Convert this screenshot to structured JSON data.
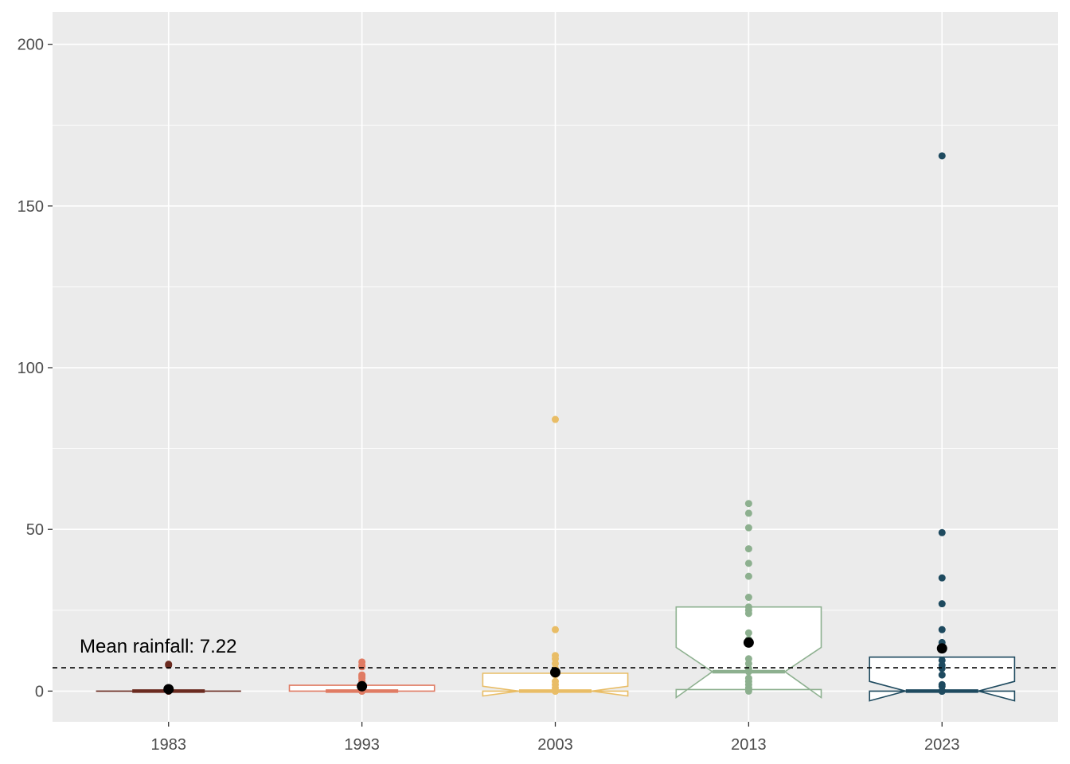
{
  "chart_data": {
    "type": "box",
    "title": "",
    "xlabel": "",
    "ylabel": "",
    "ylim": [
      -9.5,
      210
    ],
    "yticks": [
      0,
      50,
      100,
      150,
      200
    ],
    "grid": true,
    "reference_line": {
      "value": 7.22,
      "style": "dashed",
      "label": "Mean rainfall: 7.22"
    },
    "groups": [
      {
        "category": "1983",
        "color": "#6b2b20",
        "box": {
          "lower": 0,
          "q1": 0,
          "median": 0,
          "q3": 0,
          "upper": 0,
          "notch_low": 0,
          "notch_high": 0
        },
        "mean": 0.6,
        "points": [
          0,
          0,
          0,
          0,
          0,
          0,
          0.3,
          0.5,
          8.0,
          8.3
        ]
      },
      {
        "category": "1993",
        "color": "#e07b63",
        "box": {
          "lower": 0,
          "q1": 0,
          "median": 0,
          "q3": 1.8,
          "upper": 1.8,
          "notch_low": 0,
          "notch_high": 0
        },
        "mean": 1.5,
        "points": [
          0,
          0,
          0,
          0,
          0.5,
          1.0,
          2.0,
          3.0,
          4.0,
          4.5,
          5.0,
          7.5,
          8.0,
          9.0
        ]
      },
      {
        "category": "2003",
        "color": "#e9bd66",
        "box": {
          "lower": 0,
          "q1": 0,
          "median": 0,
          "q3": 5.5,
          "upper": 5.5,
          "notch_low": -1.5,
          "notch_high": 1.5
        },
        "mean": 5.8,
        "points": [
          0,
          0,
          0,
          0,
          1.0,
          2.0,
          3.0,
          5.0,
          7.0,
          8.5,
          10.0,
          11.0,
          19.0,
          84.0
        ]
      },
      {
        "category": "2013",
        "color": "#8db08f",
        "box": {
          "lower": 0.5,
          "q1": 0.5,
          "median": 6.0,
          "q3": 26.0,
          "upper": 26.0,
          "notch_low": -2.0,
          "notch_high": 13.5
        },
        "mean": 15.0,
        "points": [
          0,
          0.5,
          1.0,
          2.0,
          3.0,
          4.0,
          6.0,
          7.0,
          8.5,
          10.0,
          16.0,
          18.0,
          24.0,
          25.0,
          26.0,
          29.0,
          35.5,
          39.5,
          44.0,
          50.5,
          55.0,
          58.0
        ]
      },
      {
        "category": "2023",
        "color": "#1e4a5f",
        "box": {
          "lower": 0,
          "q1": 0,
          "median": 0,
          "q3": 10.5,
          "upper": 10.5,
          "notch_low": -3.0,
          "notch_high": 3.0
        },
        "mean": 13.2,
        "points": [
          0,
          0,
          0,
          0,
          0,
          1.5,
          2.0,
          5.0,
          7.0,
          8.0,
          9.5,
          15.0,
          19.0,
          27.0,
          35.0,
          49.0,
          165.5
        ]
      }
    ]
  }
}
